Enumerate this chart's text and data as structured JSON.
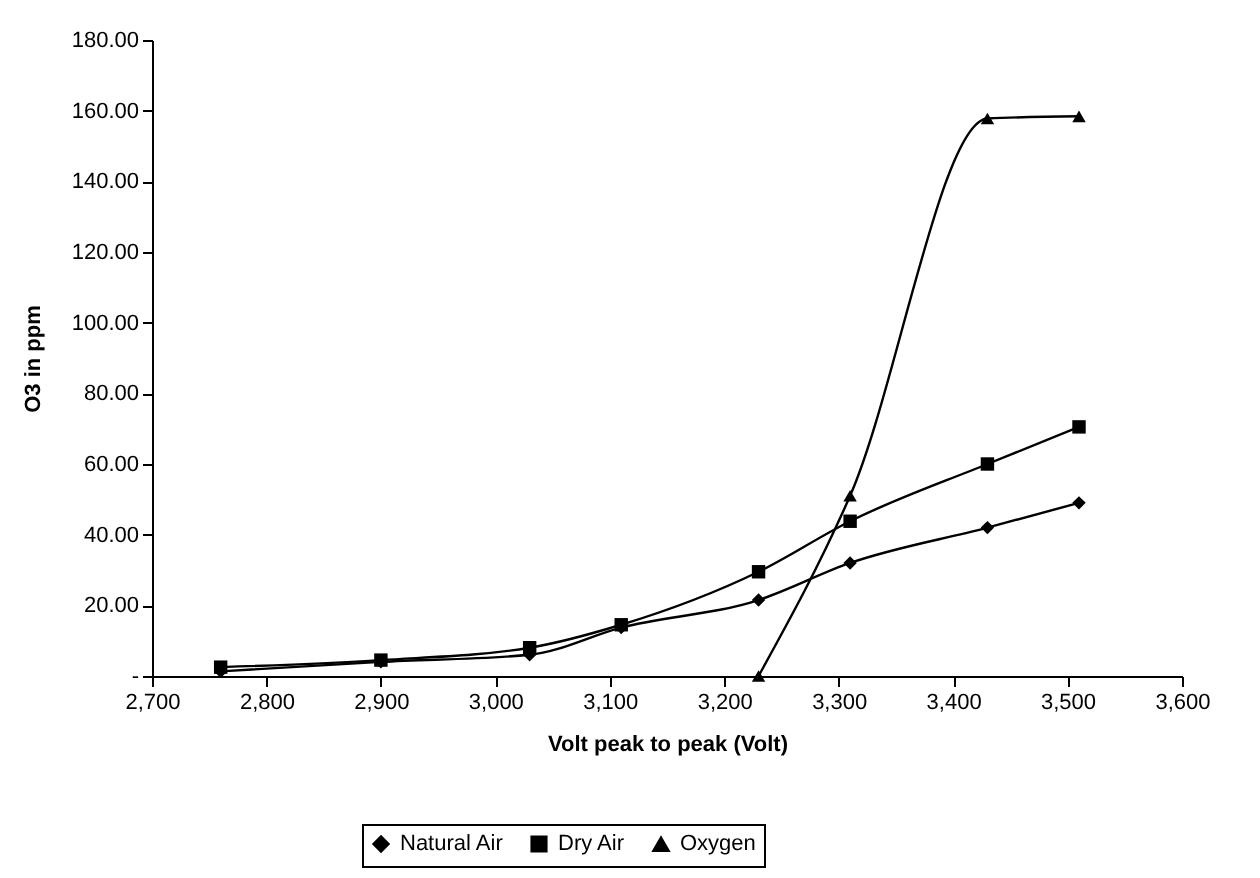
{
  "chart_data": {
    "type": "line",
    "xlabel": "Volt peak to peak (Volt)",
    "ylabel": "O3 in  ppm",
    "xlim": [
      2700,
      3600
    ],
    "xticks": [
      {
        "value": 2700,
        "label": "2,700"
      },
      {
        "value": 2800,
        "label": "2,800"
      },
      {
        "value": 2900,
        "label": "2,900"
      },
      {
        "value": 3000,
        "label": "3,000"
      },
      {
        "value": 3100,
        "label": "3,100"
      },
      {
        "value": 3200,
        "label": "3,200"
      },
      {
        "value": 3300,
        "label": "3,300"
      },
      {
        "value": 3400,
        "label": "3,400"
      },
      {
        "value": 3500,
        "label": "3,500"
      },
      {
        "value": 3600,
        "label": "3,600"
      }
    ],
    "ylim": [
      0,
      180
    ],
    "yticks": [
      {
        "value": 0,
        "label": "-"
      },
      {
        "value": 20,
        "label": "20.00"
      },
      {
        "value": 40,
        "label": "40.00"
      },
      {
        "value": 60,
        "label": "60.00"
      },
      {
        "value": 80,
        "label": "80.00"
      },
      {
        "value": 100,
        "label": "100.00"
      },
      {
        "value": 120,
        "label": "120.00"
      },
      {
        "value": 140,
        "label": "140.00"
      },
      {
        "value": 160,
        "label": "160.00"
      },
      {
        "value": 180,
        "label": "180.00"
      }
    ],
    "legend": "bottom",
    "series": [
      {
        "name": "Natural Air",
        "color": "#000000",
        "marker": "diamond",
        "x": [
          2760,
          2900,
          3030,
          3110,
          3230,
          3310,
          3430,
          3510
        ],
        "values": [
          1.3,
          4,
          6,
          13.7,
          21.5,
          32,
          42,
          49
        ]
      },
      {
        "name": "Dry Air",
        "color": "#000000",
        "marker": "square",
        "x": [
          2760,
          2900,
          3030,
          3110,
          3230,
          3310,
          3430,
          3510
        ],
        "values": [
          2.5,
          4.5,
          8,
          14.5,
          29.5,
          43.8,
          60,
          70.5
        ]
      },
      {
        "name": "Oxygen",
        "color": "#000000",
        "marker": "triangle",
        "x": [
          3230,
          3310,
          3430,
          3510
        ],
        "values": [
          0,
          51,
          157.8,
          158.4
        ]
      }
    ]
  }
}
